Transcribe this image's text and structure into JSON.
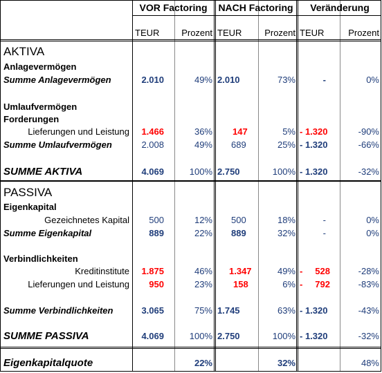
{
  "headers": {
    "vor": "VOR Factoring",
    "nach": "NACH Factoring",
    "veraenderung": "Veränderung",
    "teur": "TEUR",
    "prozent": "Prozent"
  },
  "aktiva": {
    "title": "AKTIVA",
    "anlage_heading": "Anlagevermögen",
    "summe_anlage": {
      "label": "Summe Anlagevermögen",
      "vor_teur": "2.010",
      "vor_pct": "49%",
      "nach_teur": "2.010",
      "nach_pct": "73%",
      "ver_teur": "-",
      "ver_pct": "0%"
    },
    "umlauf_heading": "Umlaufvermögen",
    "forderungen_heading": "Forderungen",
    "lieferungen": {
      "label": "Lieferungen und Leistung",
      "vor_teur": "1.466",
      "vor_pct": "36%",
      "nach_teur": "147",
      "nach_pct": "5%",
      "ver_teur": "- 1.320",
      "ver_pct": "-90%"
    },
    "summe_umlauf": {
      "label": "Summe Umlaufvermögen",
      "vor_teur": "2.008",
      "vor_pct": "49%",
      "nach_teur": "689",
      "nach_pct": "25%",
      "ver_teur": "- 1.320",
      "ver_pct": "-66%"
    },
    "summe_aktiva": {
      "label": "SUMME AKTIVA",
      "vor_teur": "4.069",
      "vor_pct": "100%",
      "nach_teur": "2.750",
      "nach_pct": "100%",
      "ver_teur": "- 1.320",
      "ver_pct": "-32%"
    }
  },
  "passiva": {
    "title": "PASSIVA",
    "eigen_heading": "Eigenkapital",
    "gezeichnetes": {
      "label": "Gezeichnetes Kapital",
      "vor_teur": "500",
      "vor_pct": "12%",
      "nach_teur": "500",
      "nach_pct": "18%",
      "ver_teur": "-",
      "ver_pct": "0%"
    },
    "summe_eigen": {
      "label": "Summe Eigenkapital",
      "vor_teur": "889",
      "vor_pct": "22%",
      "nach_teur": "889",
      "nach_pct": "32%",
      "ver_teur": "-",
      "ver_pct": "0%"
    },
    "verb_heading": "Verbindlichkeiten",
    "kredit": {
      "label": "Kreditinstitute",
      "vor_teur": "1.875",
      "vor_pct": "46%",
      "nach_teur": "1.347",
      "nach_pct": "49%",
      "ver_dash": "-",
      "ver_teur": "528",
      "ver_pct": "-28%"
    },
    "lieferungen": {
      "label": "Lieferungen und Leistung",
      "vor_teur": "950",
      "vor_pct": "23%",
      "nach_teur": "158",
      "nach_pct": "6%",
      "ver_dash": "-",
      "ver_teur": "792",
      "ver_pct": "-83%"
    },
    "summe_verb": {
      "label": "Summe Verbindlichkeiten",
      "vor_teur": "3.065",
      "vor_pct": "75%",
      "nach_teur": "1.745",
      "nach_pct": "63%",
      "ver_teur": "- 1.320",
      "ver_pct": "-43%"
    },
    "summe_passiva": {
      "label": "SUMME PASSIVA",
      "vor_teur": "4.069",
      "vor_pct": "100%",
      "nach_teur": "2.750",
      "nach_pct": "100%",
      "ver_teur": "- 1.320",
      "ver_pct": "-32%"
    }
  },
  "eigenkapitalquote": {
    "label": "Eigenkapitalquote",
    "vor_pct": "22%",
    "nach_pct": "32%",
    "ver_pct": "48%"
  },
  "colors": {
    "blue": "#1F3D7A",
    "red": "#FF0000"
  }
}
